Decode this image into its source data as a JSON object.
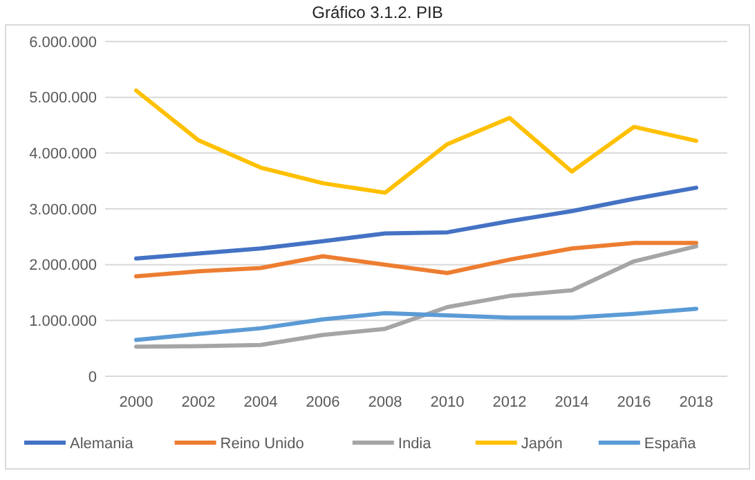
{
  "chart_data": {
    "type": "line",
    "title": "Gráfico 3.1.2. PIB",
    "categories": [
      "2000",
      "2002",
      "2004",
      "2006",
      "2008",
      "2010",
      "2012",
      "2014",
      "2016",
      "2018"
    ],
    "series": [
      {
        "name": "Alemania",
        "color": "#4472c4",
        "values": [
          2110000,
          2200000,
          2290000,
          2420000,
          2560000,
          2580000,
          2780000,
          2960000,
          3180000,
          3380000
        ]
      },
      {
        "name": "Reino Unido",
        "color": "#ed7d31",
        "values": [
          1790000,
          1880000,
          1940000,
          2150000,
          2000000,
          1850000,
          2090000,
          2290000,
          2390000,
          2390000
        ]
      },
      {
        "name": "India",
        "color": "#a5a5a5",
        "values": [
          530000,
          540000,
          560000,
          740000,
          850000,
          1240000,
          1440000,
          1540000,
          2060000,
          2330000
        ]
      },
      {
        "name": "Japón",
        "color": "#ffc000",
        "values": [
          5120000,
          4230000,
          3740000,
          3460000,
          3290000,
          4160000,
          4630000,
          3670000,
          4470000,
          4220000
        ]
      },
      {
        "name": "España",
        "color": "#5b9bd5",
        "values": [
          650000,
          760000,
          860000,
          1020000,
          1130000,
          1090000,
          1050000,
          1050000,
          1120000,
          1210000
        ]
      }
    ],
    "ylim": [
      0,
      6000000
    ],
    "yticks": [
      0,
      {
        "value": 1000000,
        "label": "1.000.000"
      },
      {
        "value": 2000000,
        "label": "2.000.000"
      },
      {
        "value": 3000000,
        "label": "3.000.000"
      },
      {
        "value": 4000000,
        "label": "4.000.000"
      },
      {
        "value": 5000000,
        "label": "5.000.000"
      },
      {
        "value": 6000000,
        "label": "6.000.000"
      }
    ],
    "grid": "y",
    "legend": "bottom",
    "line_style": "solid",
    "marker": "none"
  }
}
